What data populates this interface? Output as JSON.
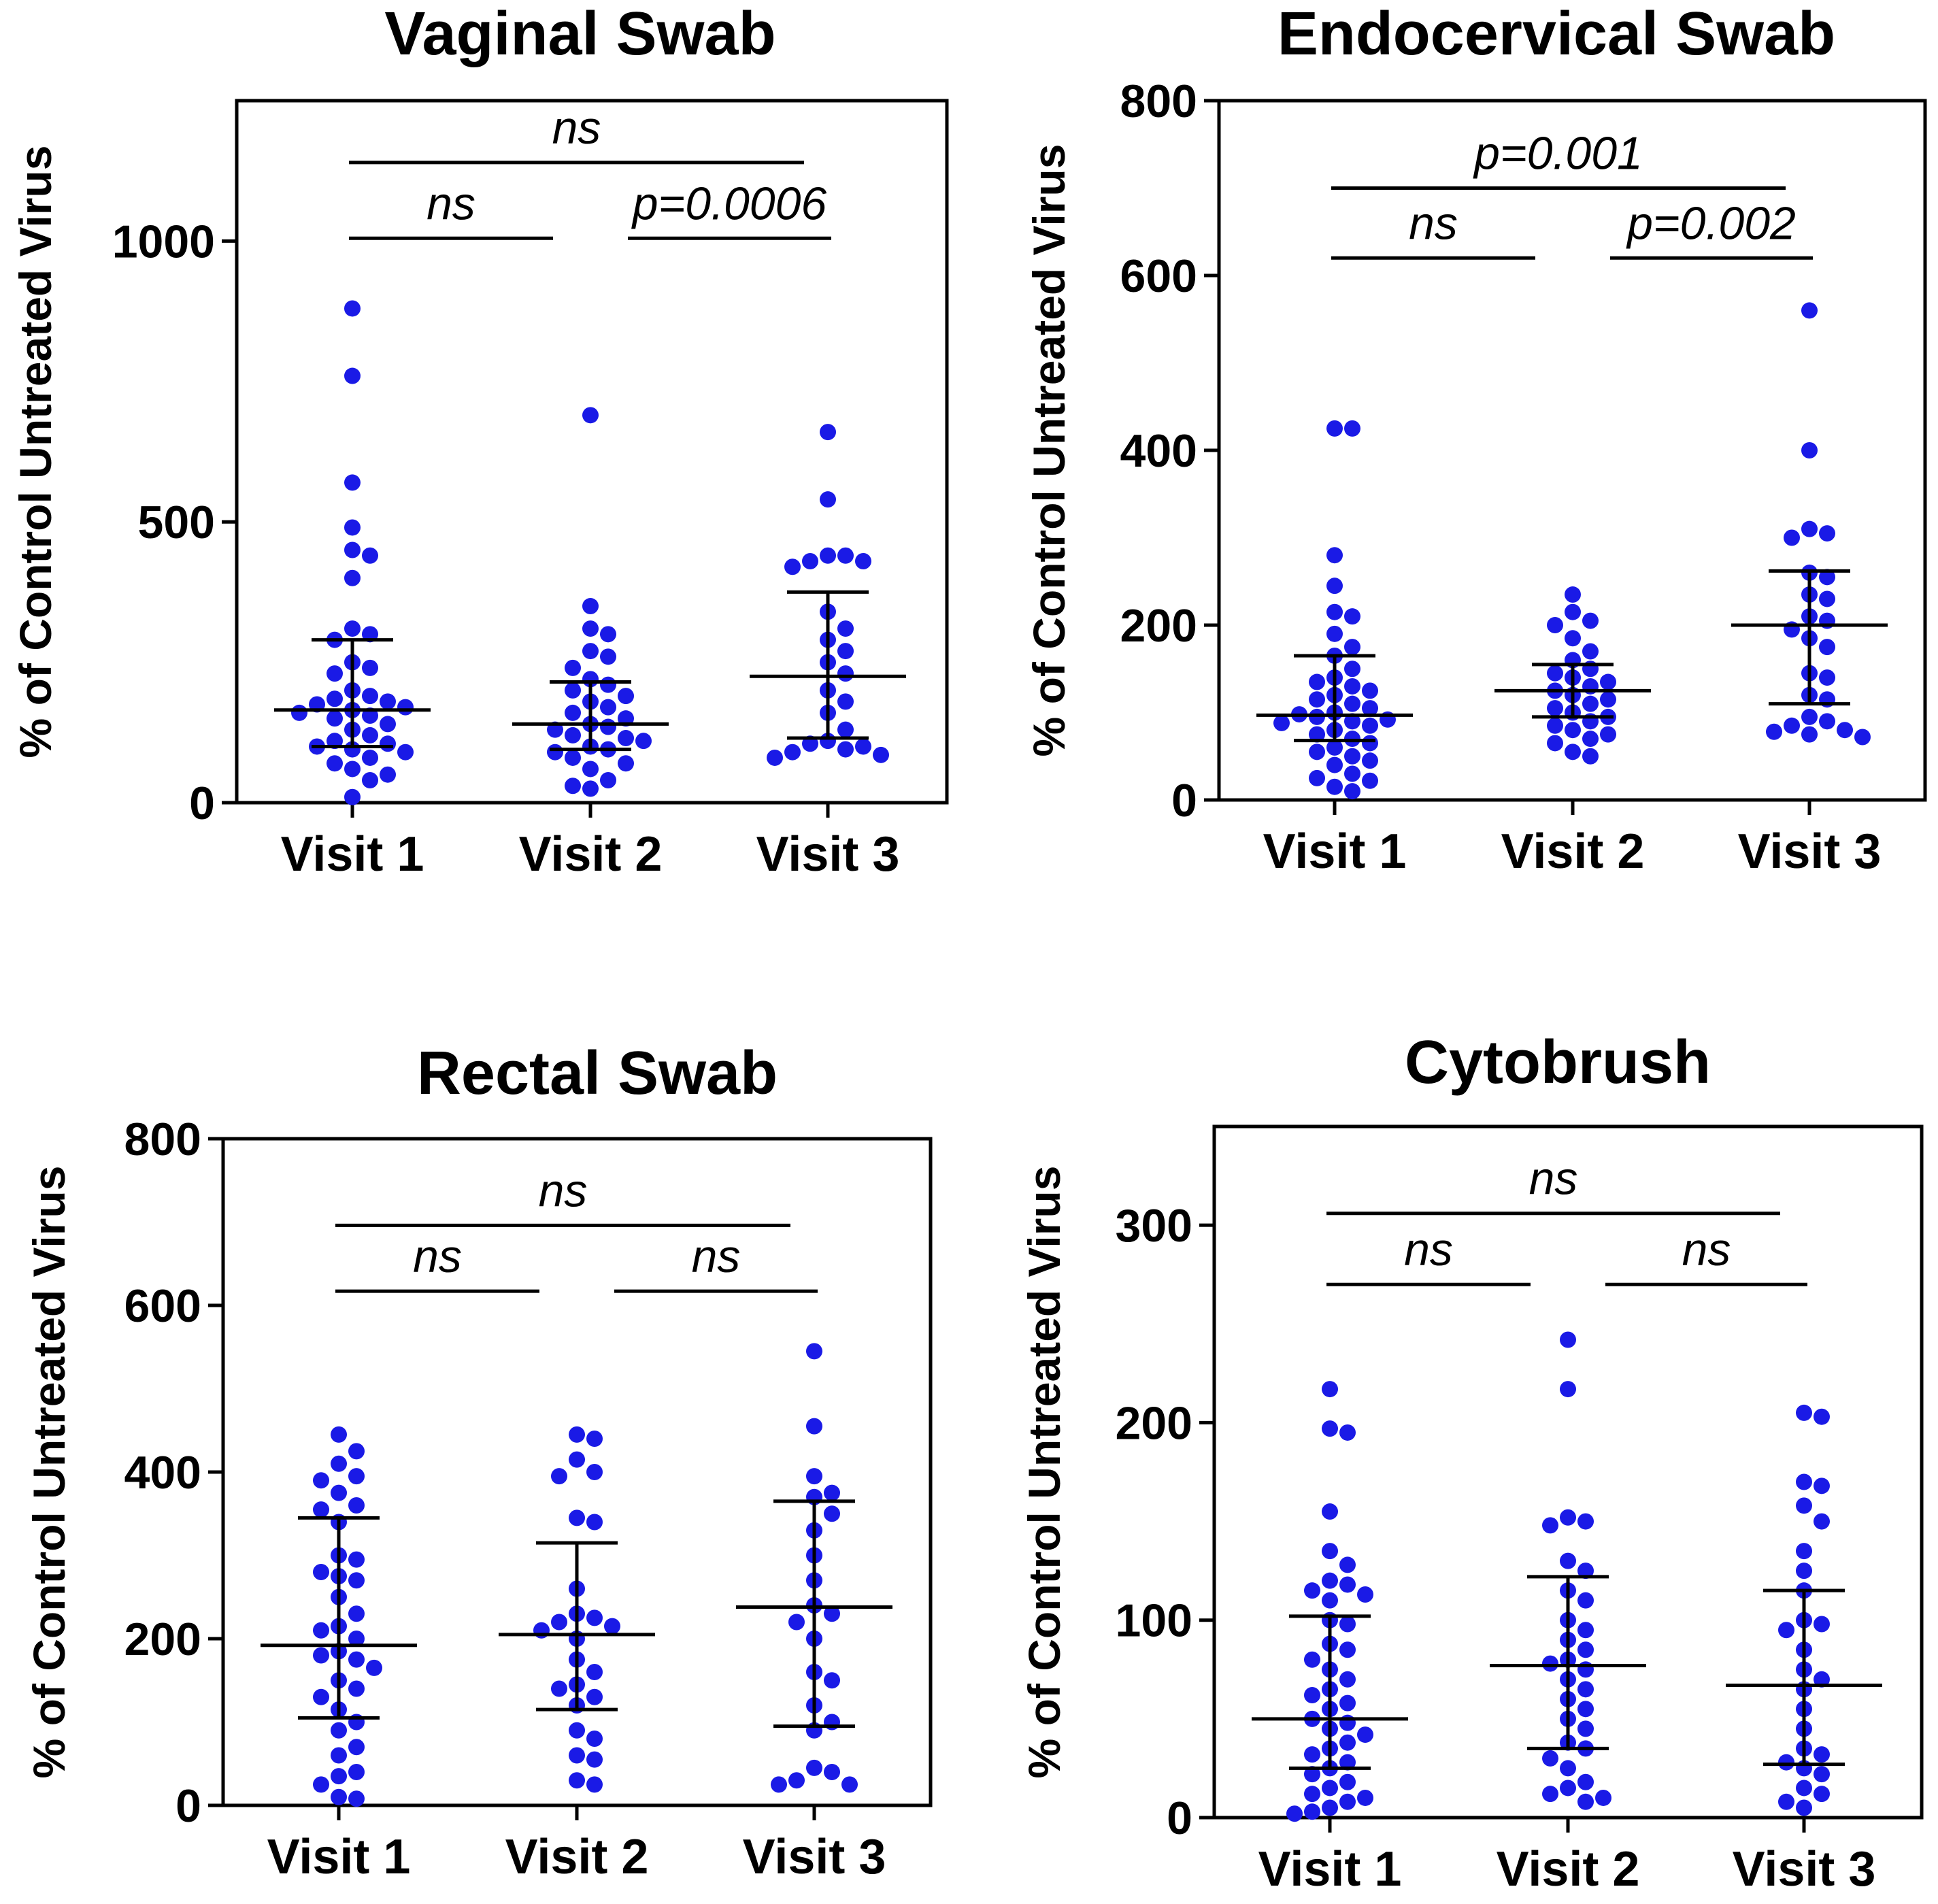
{
  "chart_data": [
    {
      "type": "scatter",
      "title": "Vaginal Swab",
      "ylabel": "% of Control  Untreated Virus",
      "ylim": [
        0,
        1250
      ],
      "yticks": [
        0,
        500,
        1000
      ],
      "ytick_labels": [
        "0",
        "500",
        "1000"
      ],
      "categories": [
        "Visit 1",
        "Visit 2",
        "Visit 3"
      ],
      "series": [
        {
          "name": "Visit 1",
          "values": [
            880,
            760,
            570,
            490,
            450,
            440,
            400,
            310,
            300,
            290,
            250,
            240,
            230,
            200,
            190,
            185,
            180,
            175,
            170,
            165,
            160,
            155,
            150,
            140,
            130,
            120,
            110,
            105,
            100,
            95,
            90,
            80,
            70,
            60,
            50,
            40,
            10
          ],
          "median": 165,
          "q1": 100,
          "q3": 290
        },
        {
          "name": "Visit 2",
          "values": [
            690,
            350,
            310,
            300,
            270,
            260,
            240,
            220,
            210,
            200,
            190,
            180,
            170,
            160,
            150,
            140,
            135,
            130,
            120,
            115,
            110,
            100,
            95,
            90,
            80,
            70,
            60,
            40,
            30,
            25
          ],
          "median": 140,
          "q1": 95,
          "q3": 215
        },
        {
          "name": "Visit 3",
          "values": [
            660,
            540,
            440,
            440,
            430,
            430,
            420,
            340,
            310,
            290,
            270,
            250,
            230,
            200,
            180,
            160,
            130,
            110,
            105,
            100,
            95,
            90,
            85,
            80
          ],
          "median": 225,
          "q1": 115,
          "q3": 375
        }
      ],
      "comparisons": [
        {
          "groups": [
            "Visit 1",
            "Visit 3"
          ],
          "label": "ns"
        },
        {
          "groups": [
            "Visit 1",
            "Visit 2"
          ],
          "label": "ns"
        },
        {
          "groups": [
            "Visit 2",
            "Visit 3"
          ],
          "label": "p=0.0006"
        }
      ]
    },
    {
      "type": "scatter",
      "title": "Endocervical Swab",
      "ylabel": "% of Control  Untreated Virus",
      "ylim": [
        0,
        800
      ],
      "yticks": [
        0,
        200,
        400,
        600,
        800
      ],
      "ytick_labels": [
        "0",
        "200",
        "400",
        "600",
        "800"
      ],
      "categories": [
        "Visit 1",
        "Visit 2",
        "Visit 3"
      ],
      "series": [
        {
          "name": "Visit 1",
          "values": [
            425,
            425,
            280,
            245,
            215,
            210,
            190,
            175,
            165,
            150,
            140,
            135,
            130,
            125,
            120,
            115,
            110,
            105,
            100,
            98,
            95,
            92,
            90,
            88,
            85,
            80,
            75,
            70,
            65,
            60,
            55,
            50,
            45,
            40,
            30,
            25,
            22,
            15,
            10
          ],
          "median": 97,
          "q1": 68,
          "q3": 165
        },
        {
          "name": "Visit 2",
          "values": [
            235,
            215,
            205,
            200,
            185,
            170,
            160,
            150,
            145,
            140,
            135,
            130,
            125,
            120,
            115,
            110,
            105,
            100,
            95,
            90,
            85,
            80,
            75,
            70,
            65,
            55,
            50
          ],
          "median": 125,
          "q1": 95,
          "q3": 155
        },
        {
          "name": "Visit 3",
          "values": [
            560,
            400,
            310,
            305,
            300,
            260,
            255,
            235,
            230,
            210,
            205,
            195,
            185,
            175,
            145,
            140,
            120,
            115,
            95,
            90,
            85,
            80,
            78,
            75,
            72
          ],
          "median": 200,
          "q1": 110,
          "q3": 262
        }
      ],
      "comparisons": [
        {
          "groups": [
            "Visit 1",
            "Visit 3"
          ],
          "label": "p=0.001"
        },
        {
          "groups": [
            "Visit 1",
            "Visit 2"
          ],
          "label": "ns"
        },
        {
          "groups": [
            "Visit 2",
            "Visit 3"
          ],
          "label": "p=0.002"
        }
      ]
    },
    {
      "type": "scatter",
      "title": "Rectal Swab",
      "ylabel": "% of Control  Untreated Virus",
      "ylim": [
        0,
        800
      ],
      "yticks": [
        0,
        200,
        400,
        600,
        800
      ],
      "ytick_labels": [
        "0",
        "200",
        "400",
        "600",
        "800"
      ],
      "categories": [
        "Visit 1",
        "Visit 2",
        "Visit 3"
      ],
      "series": [
        {
          "name": "Visit 1",
          "values": [
            445,
            425,
            410,
            395,
            390,
            375,
            360,
            355,
            340,
            300,
            295,
            280,
            275,
            270,
            250,
            230,
            215,
            210,
            200,
            185,
            180,
            175,
            165,
            150,
            140,
            130,
            115,
            100,
            90,
            70,
            60,
            40,
            35,
            25,
            10,
            8
          ],
          "median": 192,
          "q1": 105,
          "q3": 345
        },
        {
          "name": "Visit 2",
          "values": [
            445,
            440,
            415,
            400,
            395,
            345,
            340,
            260,
            230,
            225,
            220,
            215,
            210,
            200,
            175,
            160,
            145,
            140,
            130,
            120,
            90,
            80,
            60,
            55,
            30,
            25
          ],
          "median": 205,
          "q1": 115,
          "q3": 315
        },
        {
          "name": "Visit 3",
          "values": [
            545,
            455,
            395,
            375,
            370,
            350,
            330,
            300,
            270,
            240,
            230,
            220,
            200,
            160,
            150,
            120,
            100,
            90,
            45,
            40,
            30,
            25,
            25
          ],
          "median": 238,
          "q1": 95,
          "q3": 365
        }
      ],
      "comparisons": [
        {
          "groups": [
            "Visit 1",
            "Visit 3"
          ],
          "label": "ns"
        },
        {
          "groups": [
            "Visit 1",
            "Visit 2"
          ],
          "label": "ns"
        },
        {
          "groups": [
            "Visit 2",
            "Visit 3"
          ],
          "label": "ns"
        }
      ]
    },
    {
      "type": "scatter",
      "title": "Cytobrush",
      "ylabel": "% of Control  Untreated Virus",
      "ylim": [
        0,
        350
      ],
      "yticks": [
        0,
        100,
        200,
        300
      ],
      "ytick_labels": [
        "0",
        "100",
        "200",
        "300"
      ],
      "categories": [
        "Visit 1",
        "Visit 2",
        "Visit 3"
      ],
      "series": [
        {
          "name": "Visit 1",
          "values": [
            217,
            197,
            195,
            155,
            135,
            128,
            120,
            118,
            115,
            113,
            110,
            100,
            98,
            88,
            85,
            80,
            75,
            70,
            65,
            62,
            58,
            55,
            50,
            48,
            45,
            42,
            38,
            35,
            32,
            28,
            25,
            22,
            18,
            15,
            12,
            10,
            8,
            5,
            3,
            2
          ],
          "median": 50,
          "q1": 25,
          "q3": 102
        },
        {
          "name": "Visit 2",
          "values": [
            242,
            217,
            152,
            150,
            148,
            130,
            125,
            115,
            110,
            100,
            95,
            90,
            85,
            80,
            78,
            75,
            70,
            65,
            60,
            55,
            50,
            45,
            38,
            35,
            30,
            25,
            18,
            15,
            12,
            10,
            8
          ],
          "median": 77,
          "q1": 35,
          "q3": 122
        },
        {
          "name": "Visit 3",
          "values": [
            205,
            203,
            170,
            168,
            158,
            150,
            135,
            125,
            115,
            100,
            98,
            95,
            85,
            75,
            70,
            65,
            55,
            45,
            35,
            32,
            28,
            25,
            22,
            15,
            12,
            8,
            5
          ],
          "median": 67,
          "q1": 27,
          "q3": 115
        }
      ],
      "comparisons": [
        {
          "groups": [
            "Visit 1",
            "Visit 3"
          ],
          "label": "ns"
        },
        {
          "groups": [
            "Visit 1",
            "Visit 2"
          ],
          "label": "ns"
        },
        {
          "groups": [
            "Visit 2",
            "Visit 3"
          ],
          "label": "ns"
        }
      ]
    }
  ]
}
